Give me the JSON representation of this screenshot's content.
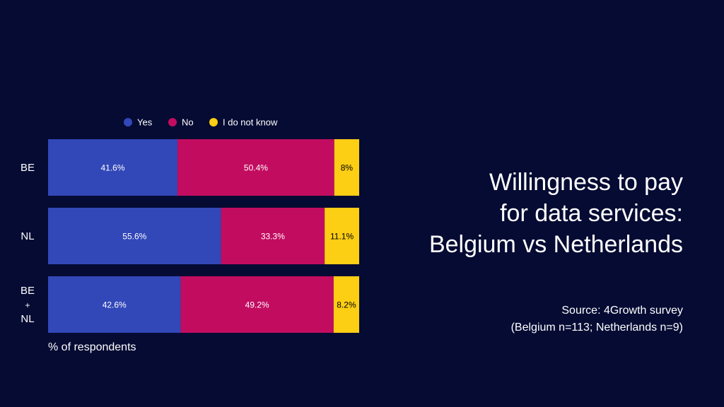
{
  "chart_data": {
    "type": "bar",
    "orientation": "horizontal",
    "stacked": true,
    "categories": [
      "BE",
      "NL",
      "BE\n+\nNL"
    ],
    "series": [
      {
        "name": "Yes",
        "values": [
          41.6,
          55.6,
          42.6
        ],
        "labels": [
          "41.6%",
          "55.6%",
          "42.6%"
        ],
        "color": "#3247b8"
      },
      {
        "name": "No",
        "values": [
          50.4,
          33.3,
          49.2
        ],
        "labels": [
          "50.4%",
          "33.3%",
          "49.2%"
        ],
        "color": "#c20c60"
      },
      {
        "name": "I do not know",
        "values": [
          8,
          11.1,
          8.2
        ],
        "labels": [
          "8%",
          "11.1%",
          "8.2%"
        ],
        "color": "#fcce14"
      }
    ],
    "xlabel": "% of respondents",
    "xlim": [
      0,
      100
    ],
    "legend_position": "top",
    "grid": false,
    "label_colors": {
      "Yes": "#ffffff",
      "No": "#ffffff",
      "I do not know": "#000000"
    }
  },
  "title_lines": [
    "Willingness to pay",
    "for data services:",
    "Belgium vs Netherlands"
  ],
  "source_lines": [
    "Source: 4Growth survey",
    "(Belgium n=113; Netherlands n=9)"
  ],
  "colors": {
    "background": "#050b33",
    "text": "#ffffff"
  }
}
